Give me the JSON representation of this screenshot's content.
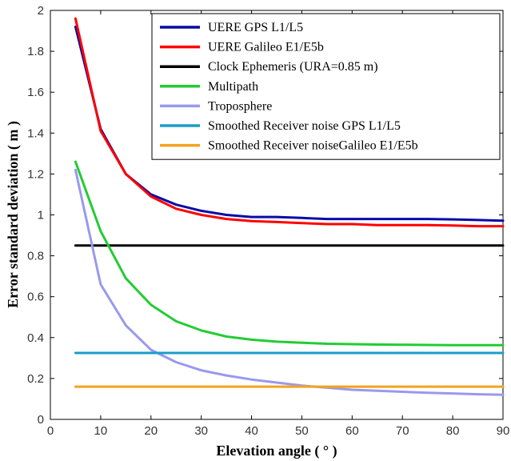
{
  "chart_data": {
    "type": "line",
    "xlabel": "Elevation angle ( ° )",
    "ylabel": "Error standard deviation ( m )",
    "xlim": [
      0,
      90
    ],
    "ylim": [
      0,
      2
    ],
    "xticks": [
      "0",
      "10",
      "20",
      "30",
      "40",
      "50",
      "60",
      "70",
      "80",
      "90"
    ],
    "yticks": [
      "0",
      "0.2",
      "0.4",
      "0.6",
      "0.8",
      "1",
      "1.2",
      "1.4",
      "1.6",
      "1.8",
      "2"
    ],
    "grid": false,
    "legend_position": "top-right",
    "x": [
      5,
      10,
      15,
      20,
      25,
      30,
      35,
      40,
      45,
      50,
      55,
      60,
      65,
      70,
      75,
      80,
      85,
      90
    ],
    "series": [
      {
        "name": "UERE GPS L1/L5",
        "color": "#0a0aa8",
        "values": [
          1.92,
          1.42,
          1.2,
          1.1,
          1.05,
          1.02,
          1.0,
          0.99,
          0.99,
          0.985,
          0.98,
          0.98,
          0.98,
          0.98,
          0.98,
          0.978,
          0.975,
          0.972
        ]
      },
      {
        "name": "UERE Galileo E1/E5b",
        "color": "#ff0000",
        "values": [
          1.96,
          1.41,
          1.2,
          1.09,
          1.03,
          1.0,
          0.98,
          0.97,
          0.965,
          0.96,
          0.955,
          0.955,
          0.95,
          0.95,
          0.95,
          0.948,
          0.945,
          0.945
        ]
      },
      {
        "name": "Clock Ephemeris (URA=0.85 m)",
        "color": "#000000",
        "values": [
          0.85,
          0.85,
          0.85,
          0.85,
          0.85,
          0.85,
          0.85,
          0.85,
          0.85,
          0.85,
          0.85,
          0.85,
          0.85,
          0.85,
          0.85,
          0.85,
          0.85,
          0.85
        ]
      },
      {
        "name": "Multipath",
        "color": "#22cc33",
        "values": [
          1.26,
          0.92,
          0.69,
          0.56,
          0.48,
          0.435,
          0.405,
          0.39,
          0.38,
          0.375,
          0.37,
          0.368,
          0.366,
          0.365,
          0.364,
          0.363,
          0.363,
          0.363
        ]
      },
      {
        "name": "Troposphere",
        "color": "#9999ee",
        "values": [
          1.22,
          0.66,
          0.46,
          0.34,
          0.28,
          0.24,
          0.215,
          0.195,
          0.18,
          0.165,
          0.155,
          0.145,
          0.14,
          0.135,
          0.13,
          0.127,
          0.123,
          0.12
        ]
      },
      {
        "name": "Smoothed Receiver noise GPS L1/L5",
        "color": "#1a9ec8",
        "values": [
          0.325,
          0.325,
          0.325,
          0.325,
          0.325,
          0.325,
          0.325,
          0.325,
          0.325,
          0.325,
          0.325,
          0.325,
          0.325,
          0.325,
          0.325,
          0.325,
          0.325,
          0.325
        ]
      },
      {
        "name": "Smoothed Receiver noiseGalileo E1/E5b",
        "color": "#f4a21e",
        "values": [
          0.16,
          0.16,
          0.16,
          0.16,
          0.16,
          0.16,
          0.16,
          0.16,
          0.16,
          0.16,
          0.16,
          0.16,
          0.16,
          0.16,
          0.16,
          0.16,
          0.16,
          0.16
        ]
      }
    ]
  }
}
